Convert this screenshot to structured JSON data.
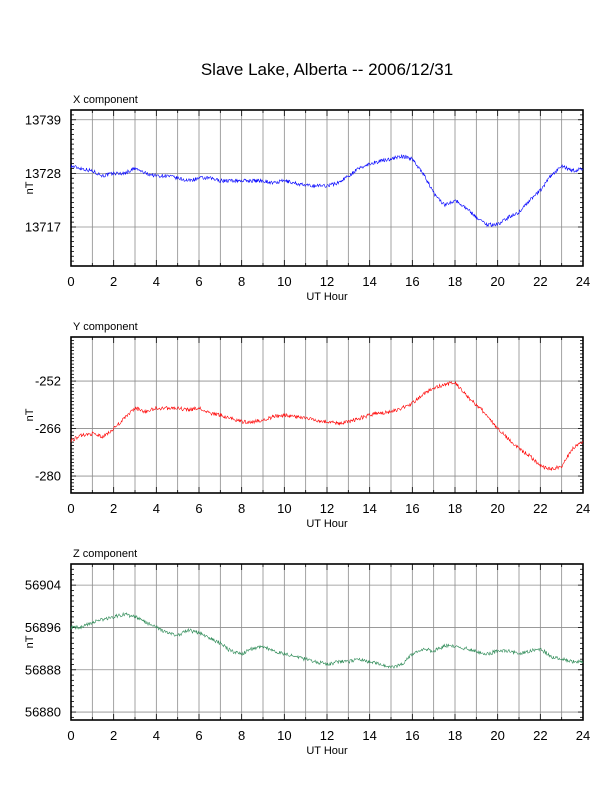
{
  "title": "Slave Lake, Alberta -- 2006/12/31",
  "chart_data": [
    {
      "type": "line",
      "title": "X component",
      "xlabel": "UT Hour",
      "ylabel": "nT",
      "xlim": [
        0,
        24
      ],
      "ylim": [
        13709,
        13741
      ],
      "xticks": [
        "0",
        "2",
        "4",
        "6",
        "8",
        "10",
        "12",
        "14",
        "16",
        "18",
        "20",
        "22",
        "24"
      ],
      "yticks": [
        "13739",
        "13728",
        "13717"
      ],
      "grid": true,
      "color": "#0000ff",
      "x": [
        0,
        0.5,
        1,
        1.5,
        2,
        2.5,
        3,
        3.5,
        4,
        4.5,
        5,
        5.5,
        6,
        6.5,
        7,
        7.5,
        8,
        8.5,
        9,
        9.5,
        10,
        10.5,
        11,
        11.5,
        12,
        12.5,
        13,
        13.5,
        14,
        14.5,
        15,
        15.5,
        16,
        16.5,
        17,
        17.5,
        18,
        18.5,
        19,
        19.5,
        20,
        20.5,
        21,
        21.5,
        22,
        22.5,
        23,
        23.5,
        24
      ],
      "y": [
        13729.5,
        13729,
        13728.5,
        13727.5,
        13728,
        13728,
        13729,
        13728,
        13727.5,
        13727.5,
        13727,
        13726.5,
        13727,
        13727,
        13726.5,
        13726.5,
        13726.5,
        13726.5,
        13726.5,
        13726,
        13726.5,
        13726,
        13725.5,
        13725.5,
        13725.5,
        13726,
        13727.5,
        13729,
        13730,
        13730.5,
        13731,
        13731.5,
        13731,
        13728,
        13724,
        13721.5,
        13722.5,
        13721,
        13719,
        13717.5,
        13717.5,
        13719,
        13720,
        13722.5,
        13724.5,
        13727.5,
        13729.5,
        13728.5,
        13729
      ]
    },
    {
      "type": "line",
      "title": "Y component",
      "xlabel": "UT Hour",
      "ylabel": "nT",
      "xlim": [
        0,
        24
      ],
      "ylim": [
        -285,
        -239
      ],
      "xticks": [
        "0",
        "2",
        "4",
        "6",
        "8",
        "10",
        "12",
        "14",
        "16",
        "18",
        "20",
        "22",
        "24"
      ],
      "yticks": [
        "-252",
        "-266",
        "-280"
      ],
      "grid": true,
      "color": "#ff0000",
      "x": [
        0,
        0.5,
        1,
        1.5,
        2,
        2.5,
        3,
        3.5,
        4,
        4.5,
        5,
        5.5,
        6,
        6.5,
        7,
        7.5,
        8,
        8.5,
        9,
        9.5,
        10,
        10.5,
        11,
        11.5,
        12,
        12.5,
        13,
        13.5,
        14,
        14.5,
        15,
        15.5,
        16,
        16.5,
        17,
        17.5,
        18,
        18.5,
        19,
        19.5,
        20,
        20.5,
        21,
        21.5,
        22,
        22.5,
        23,
        23.5,
        24
      ],
      "y": [
        -269.5,
        -268,
        -267.5,
        -268.5,
        -266,
        -263,
        -260,
        -261,
        -260,
        -260,
        -260,
        -260.5,
        -260,
        -261.5,
        -262,
        -263,
        -264,
        -264,
        -263.5,
        -262.5,
        -262,
        -262.5,
        -263,
        -263.5,
        -264,
        -264.5,
        -264,
        -263,
        -262,
        -261.5,
        -261,
        -260,
        -258.5,
        -256,
        -254,
        -253,
        -252.5,
        -256,
        -259,
        -262,
        -266,
        -269,
        -272,
        -274,
        -277,
        -278,
        -277,
        -272,
        -270
      ]
    },
    {
      "type": "line",
      "title": "Z component",
      "xlabel": "UT Hour",
      "ylabel": "nT",
      "xlim": [
        0,
        24
      ],
      "ylim": [
        56878.5,
        56908
      ],
      "xticks": [
        "0",
        "2",
        "4",
        "6",
        "8",
        "10",
        "12",
        "14",
        "16",
        "18",
        "20",
        "22",
        "24"
      ],
      "yticks": [
        "56904",
        "56896",
        "56888",
        "56880"
      ],
      "grid": true,
      "color": "#2e8b57",
      "x": [
        0,
        0.5,
        1,
        1.5,
        2,
        2.5,
        3,
        3.5,
        4,
        4.5,
        5,
        5.5,
        6,
        6.5,
        7,
        7.5,
        8,
        8.5,
        9,
        9.5,
        10,
        10.5,
        11,
        11.5,
        12,
        12.5,
        13,
        13.5,
        14,
        14.5,
        15,
        15.5,
        16,
        16.5,
        17,
        17.5,
        18,
        18.5,
        19,
        19.5,
        20,
        20.5,
        21,
        21.5,
        22,
        22.5,
        23,
        23.5,
        24
      ],
      "y": [
        56896,
        56896,
        56897,
        56897.5,
        56898,
        56898.5,
        56898,
        56897,
        56896,
        56895,
        56894.5,
        56895.5,
        56895,
        56894,
        56893,
        56891.5,
        56891,
        56892,
        56892.5,
        56891.5,
        56891,
        56890.5,
        56890,
        56889.5,
        56889,
        56889.5,
        56889.5,
        56890,
        56889.5,
        56889,
        56888.5,
        56889,
        56891,
        56892,
        56891.5,
        56892.5,
        56892.5,
        56892,
        56891.5,
        56891,
        56891.5,
        56891.5,
        56891,
        56891.5,
        56892,
        56890.5,
        56890,
        56889.5,
        56889.5
      ]
    }
  ]
}
